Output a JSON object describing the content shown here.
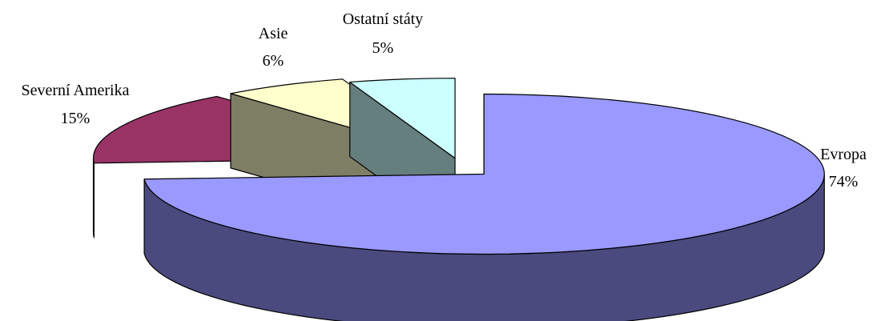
{
  "chart_data": {
    "type": "pie",
    "style": "3d-exploded",
    "title": "",
    "legend": "none",
    "series": [
      {
        "label": "Evropa",
        "value": 74,
        "value_label": "74%",
        "top_color": "#9999FF",
        "side_color": "#4A4A7E"
      },
      {
        "label": "Severní Amerika",
        "value": 15,
        "value_label": "15%",
        "top_color": "#993366",
        "side_color": "#4B1A32"
      },
      {
        "label": "Asie",
        "value": 6,
        "value_label": "6%",
        "top_color": "#FFFFCC",
        "side_color": "#7E7E65"
      },
      {
        "label": "Ostatní státy",
        "value": 5,
        "value_label": "5%",
        "top_color": "#CCFFFF",
        "side_color": "#657E7E"
      }
    ]
  }
}
